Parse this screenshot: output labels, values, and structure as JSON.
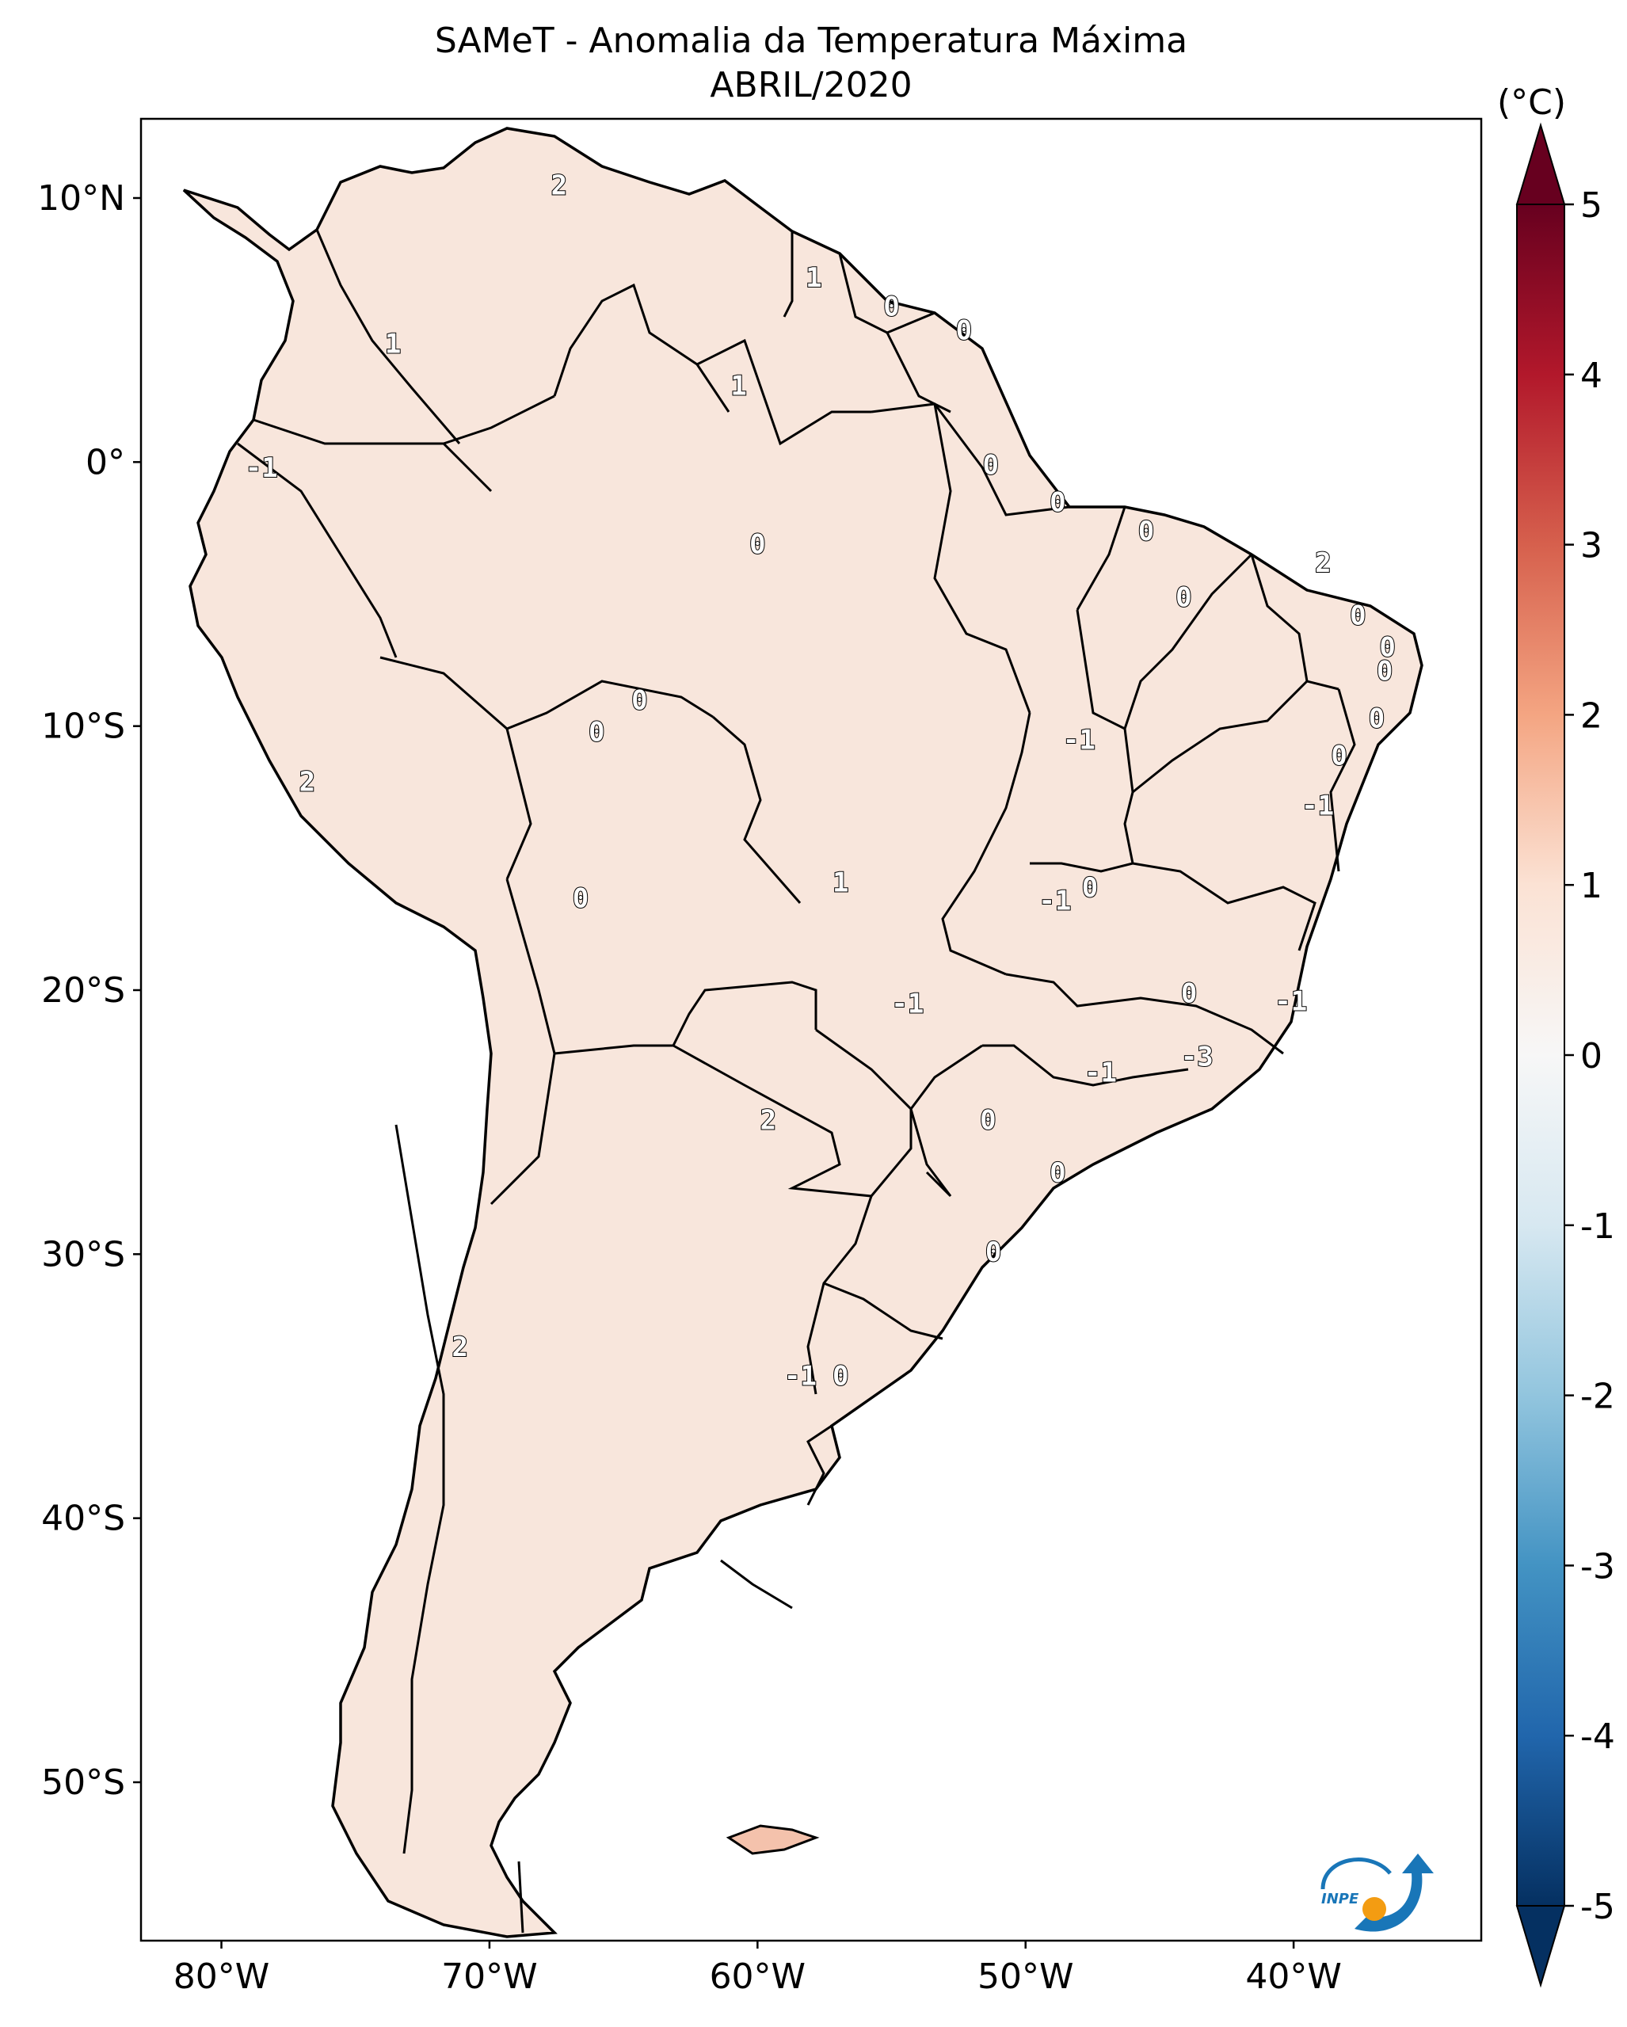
{
  "title": {
    "line1": "SAMeT - Anomalia da Temperatura Máxima",
    "line2": "ABRIL/2020"
  },
  "colorbar": {
    "unit": "(°C)",
    "ticks": [
      "5",
      "4",
      "3",
      "2",
      "1",
      "0",
      "-1",
      "-2",
      "-3",
      "-4",
      "-5"
    ],
    "colormap": "RdBu_r",
    "range": [
      -5,
      5
    ],
    "extend": "both",
    "colors": {
      "max": "#67001f",
      "warm": "#d6604d",
      "light_warm": "#f4a582",
      "neutral": "#f7f7f7",
      "light_cool": "#92c5de",
      "cool": "#4393c3",
      "min": "#053061"
    }
  },
  "map": {
    "lon_ticks": [
      "80°W",
      "70°W",
      "60°W",
      "50°W",
      "40°W"
    ],
    "lat_ticks": [
      "10°N",
      "0°",
      "10°S",
      "20°S",
      "30°S",
      "40°S",
      "50°S"
    ],
    "lon_range": [
      -83,
      -33
    ],
    "lat_range": [
      -56,
      13
    ]
  },
  "contour_labels": [
    {
      "text": "2",
      "lon": -67.4,
      "lat": 10.5
    },
    {
      "text": "1",
      "lon": -57.9,
      "lat": 7.0
    },
    {
      "text": "0",
      "lon": -55.0,
      "lat": 5.9
    },
    {
      "text": "0",
      "lon": -52.3,
      "lat": 5.0
    },
    {
      "text": "1",
      "lon": -73.6,
      "lat": 4.5
    },
    {
      "text": "1",
      "lon": -60.7,
      "lat": 2.9
    },
    {
      "text": "-1",
      "lon": -78.5,
      "lat": -0.2
    },
    {
      "text": "0",
      "lon": -51.3,
      "lat": -0.1
    },
    {
      "text": "0",
      "lon": -48.8,
      "lat": -1.5
    },
    {
      "text": "0",
      "lon": -45.5,
      "lat": -2.6
    },
    {
      "text": "0",
      "lon": -60.0,
      "lat": -3.1
    },
    {
      "text": "2",
      "lon": -38.9,
      "lat": -3.8
    },
    {
      "text": "0",
      "lon": -44.1,
      "lat": -5.1
    },
    {
      "text": "0",
      "lon": -37.6,
      "lat": -5.8
    },
    {
      "text": "0",
      "lon": -36.5,
      "lat": -7.0
    },
    {
      "text": "0",
      "lon": -36.6,
      "lat": -7.9
    },
    {
      "text": "0",
      "lon": -64.4,
      "lat": -9.0
    },
    {
      "text": "0",
      "lon": -66.0,
      "lat": -10.2
    },
    {
      "text": "0",
      "lon": -36.9,
      "lat": -9.7
    },
    {
      "text": "-1",
      "lon": -48.0,
      "lat": -10.5
    },
    {
      "text": "0",
      "lon": -38.3,
      "lat": -11.1
    },
    {
      "text": "2",
      "lon": -76.8,
      "lat": -12.1
    },
    {
      "text": "-1",
      "lon": -39.1,
      "lat": -13.0
    },
    {
      "text": "1",
      "lon": -56.9,
      "lat": -15.9
    },
    {
      "text": "0",
      "lon": -47.6,
      "lat": -16.1
    },
    {
      "text": "-1",
      "lon": -48.9,
      "lat": -16.6
    },
    {
      "text": "0",
      "lon": -66.6,
      "lat": -16.5
    },
    {
      "text": "0",
      "lon": -43.9,
      "lat": -20.1
    },
    {
      "text": "-1",
      "lon": -54.4,
      "lat": -20.5
    },
    {
      "text": "-1",
      "lon": -40.1,
      "lat": -20.4
    },
    {
      "text": "-1",
      "lon": -47.2,
      "lat": -23.1
    },
    {
      "text": "-3",
      "lon": -43.6,
      "lat": -22.5
    },
    {
      "text": "2",
      "lon": -59.6,
      "lat": -24.9
    },
    {
      "text": "0",
      "lon": -51.4,
      "lat": -24.9
    },
    {
      "text": "0",
      "lon": -48.8,
      "lat": -26.9
    },
    {
      "text": "0",
      "lon": -51.2,
      "lat": -29.9
    },
    {
      "text": "2",
      "lon": -71.1,
      "lat": -33.5
    },
    {
      "text": "-1",
      "lon": -58.4,
      "lat": -34.6
    },
    {
      "text": "0",
      "lon": -56.9,
      "lat": -34.6
    }
  ],
  "logo": {
    "text": "INPE",
    "colors": {
      "blue": "#1976b8",
      "orange": "#f39c12"
    }
  }
}
